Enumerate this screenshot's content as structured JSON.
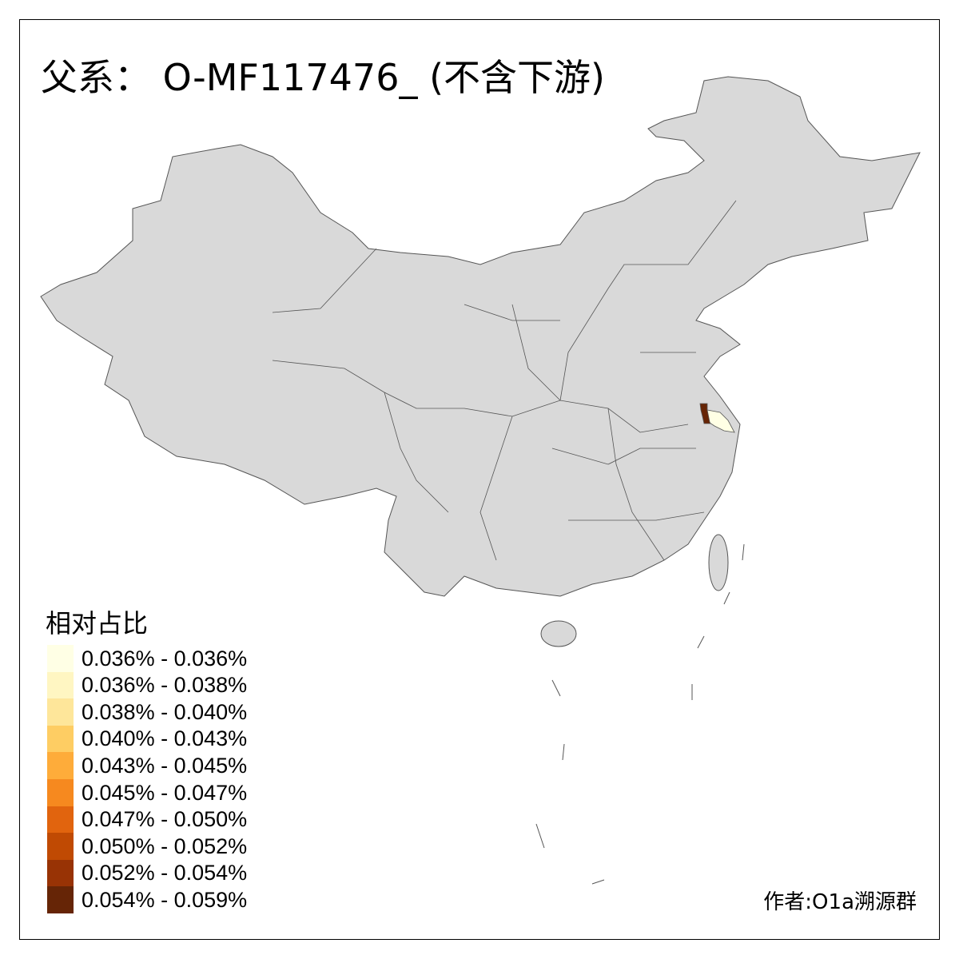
{
  "title": "父系： O-MF117476_ (不含下游)",
  "legend": {
    "title": "相对占比",
    "items": [
      {
        "label": "0.036% - 0.036%",
        "color": "#FFFFE5"
      },
      {
        "label": "0.036% - 0.038%",
        "color": "#FFF6C2"
      },
      {
        "label": "0.038% - 0.040%",
        "color": "#FEE69A"
      },
      {
        "label": "0.040% - 0.043%",
        "color": "#FECD63"
      },
      {
        "label": "0.043% - 0.045%",
        "color": "#FEAC3A"
      },
      {
        "label": "0.045% - 0.047%",
        "color": "#F6891F"
      },
      {
        "label": "0.047% - 0.050%",
        "color": "#E1640E"
      },
      {
        "label": "0.050% - 0.052%",
        "color": "#C04A03"
      },
      {
        "label": "0.052% - 0.054%",
        "color": "#983305"
      },
      {
        "label": "0.054% - 0.059%",
        "color": "#662506"
      }
    ]
  },
  "map": {
    "base_color": "#D9D9D9",
    "highlighted": [
      {
        "region": "dark",
        "color": "#662506"
      },
      {
        "region": "light",
        "color": "#FFFFE5"
      }
    ]
  },
  "author": "作者:O1a溯源群"
}
